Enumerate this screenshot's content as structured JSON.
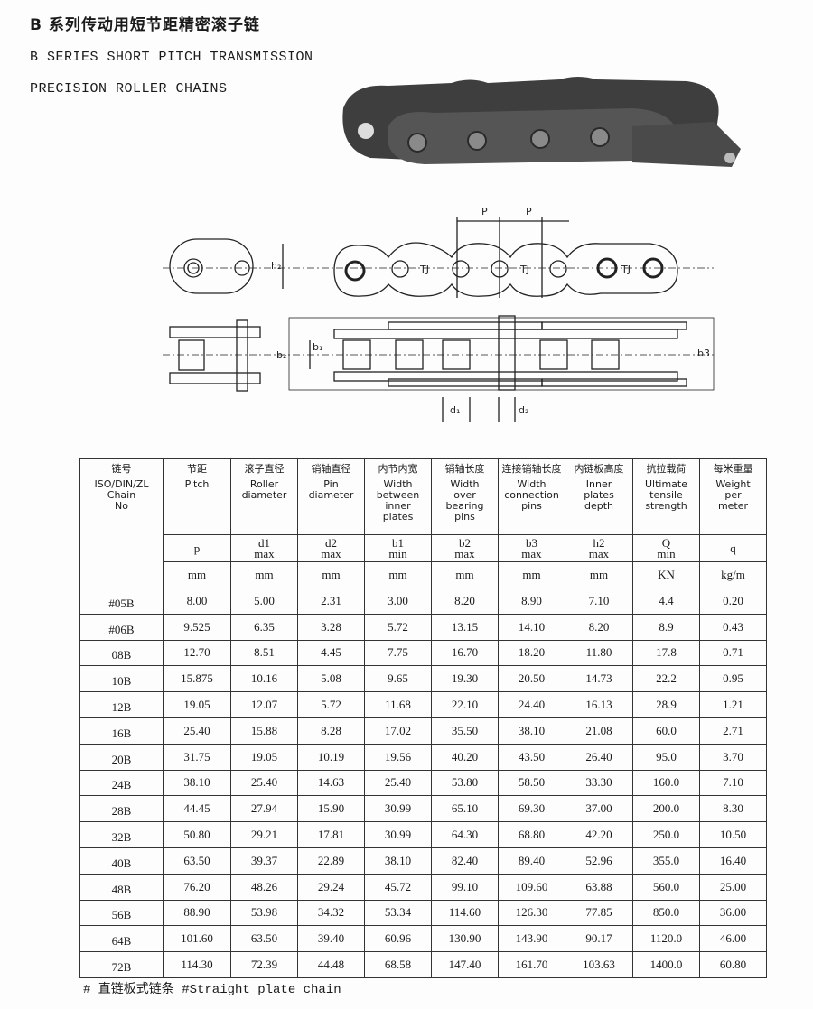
{
  "title_cn": "B 系列传动用短节距精密滚子链",
  "title_en_line1": "B SERIES SHORT PITCH TRANSMISSION",
  "title_en_line2": "PRECISION ROLLER CHAINS",
  "diagram": {
    "pitch": "P",
    "h2": "h₂",
    "b1": "b₁",
    "b2": "b₂",
    "b3": "b3",
    "d1": "d₁",
    "d2": "d₂",
    "mark": "TJ"
  },
  "table": {
    "columns": [
      {
        "cn": "链号",
        "en": [
          "ISO/DIN/ZL",
          "Chain",
          "No"
        ],
        "sym": "",
        "sub": "",
        "unit": ""
      },
      {
        "cn": "节距",
        "en": [
          "Pitch"
        ],
        "sym": "p",
        "sub": "",
        "unit": "mm"
      },
      {
        "cn": "滚子直径",
        "en": [
          "Roller",
          "diameter"
        ],
        "sym": "d1",
        "sub": "max",
        "unit": "mm"
      },
      {
        "cn": "销轴直径",
        "en": [
          "Pin",
          "diameter"
        ],
        "sym": "d2",
        "sub": "max",
        "unit": "mm"
      },
      {
        "cn": "内节内宽",
        "en": [
          "Width",
          "between",
          "inner",
          "plates"
        ],
        "sym": "b1",
        "sub": "min",
        "unit": "mm"
      },
      {
        "cn": "销轴长度",
        "en": [
          "Width",
          "over",
          "bearing",
          "pins"
        ],
        "sym": "b2",
        "sub": "max",
        "unit": "mm"
      },
      {
        "cn": "连接销轴长度",
        "en": [
          "Width",
          "connection",
          "pins"
        ],
        "sym": "b3",
        "sub": "max",
        "unit": "mm"
      },
      {
        "cn": "内链板高度",
        "en": [
          "Inner",
          "plates",
          "depth"
        ],
        "sym": "h2",
        "sub": "max",
        "unit": "mm"
      },
      {
        "cn": "抗拉载荷",
        "en": [
          "Ultimate",
          "tensile",
          "strength"
        ],
        "sym": "Q",
        "sub": "min",
        "unit": "KN"
      },
      {
        "cn": "每米重量",
        "en": [
          "Weight",
          "per",
          "meter"
        ],
        "sym": "q",
        "sub": "",
        "unit": "kg/m"
      }
    ],
    "rows": [
      [
        "#05B",
        "8.00",
        "5.00",
        "2.31",
        "3.00",
        "8.20",
        "8.90",
        "7.10",
        "4.4",
        "0.20"
      ],
      [
        "#06B",
        "9.525",
        "6.35",
        "3.28",
        "5.72",
        "13.15",
        "14.10",
        "8.20",
        "8.9",
        "0.43"
      ],
      [
        "08B",
        "12.70",
        "8.51",
        "4.45",
        "7.75",
        "16.70",
        "18.20",
        "11.80",
        "17.8",
        "0.71"
      ],
      [
        "10B",
        "15.875",
        "10.16",
        "5.08",
        "9.65",
        "19.30",
        "20.50",
        "14.73",
        "22.2",
        "0.95"
      ],
      [
        "12B",
        "19.05",
        "12.07",
        "5.72",
        "11.68",
        "22.10",
        "24.40",
        "16.13",
        "28.9",
        "1.21"
      ],
      [
        "16B",
        "25.40",
        "15.88",
        "8.28",
        "17.02",
        "35.50",
        "38.10",
        "21.08",
        "60.0",
        "2.71"
      ],
      [
        "20B",
        "31.75",
        "19.05",
        "10.19",
        "19.56",
        "40.20",
        "43.50",
        "26.40",
        "95.0",
        "3.70"
      ],
      [
        "24B",
        "38.10",
        "25.40",
        "14.63",
        "25.40",
        "53.80",
        "58.50",
        "33.30",
        "160.0",
        "7.10"
      ],
      [
        "28B",
        "44.45",
        "27.94",
        "15.90",
        "30.99",
        "65.10",
        "69.30",
        "37.00",
        "200.0",
        "8.30"
      ],
      [
        "32B",
        "50.80",
        "29.21",
        "17.81",
        "30.99",
        "64.30",
        "68.80",
        "42.20",
        "250.0",
        "10.50"
      ],
      [
        "40B",
        "63.50",
        "39.37",
        "22.89",
        "38.10",
        "82.40",
        "89.40",
        "52.96",
        "355.0",
        "16.40"
      ],
      [
        "48B",
        "76.20",
        "48.26",
        "29.24",
        "45.72",
        "99.10",
        "109.60",
        "63.88",
        "560.0",
        "25.00"
      ],
      [
        "56B",
        "88.90",
        "53.98",
        "34.32",
        "53.34",
        "114.60",
        "126.30",
        "77.85",
        "850.0",
        "36.00"
      ],
      [
        "64B",
        "101.60",
        "63.50",
        "39.40",
        "60.96",
        "130.90",
        "143.90",
        "90.17",
        "1120.0",
        "46.00"
      ],
      [
        "72B",
        "114.30",
        "72.39",
        "44.48",
        "68.58",
        "147.40",
        "161.70",
        "103.63",
        "1400.0",
        "60.80"
      ]
    ]
  },
  "footnote": "# 直链板式链条   #Straight plate chain"
}
